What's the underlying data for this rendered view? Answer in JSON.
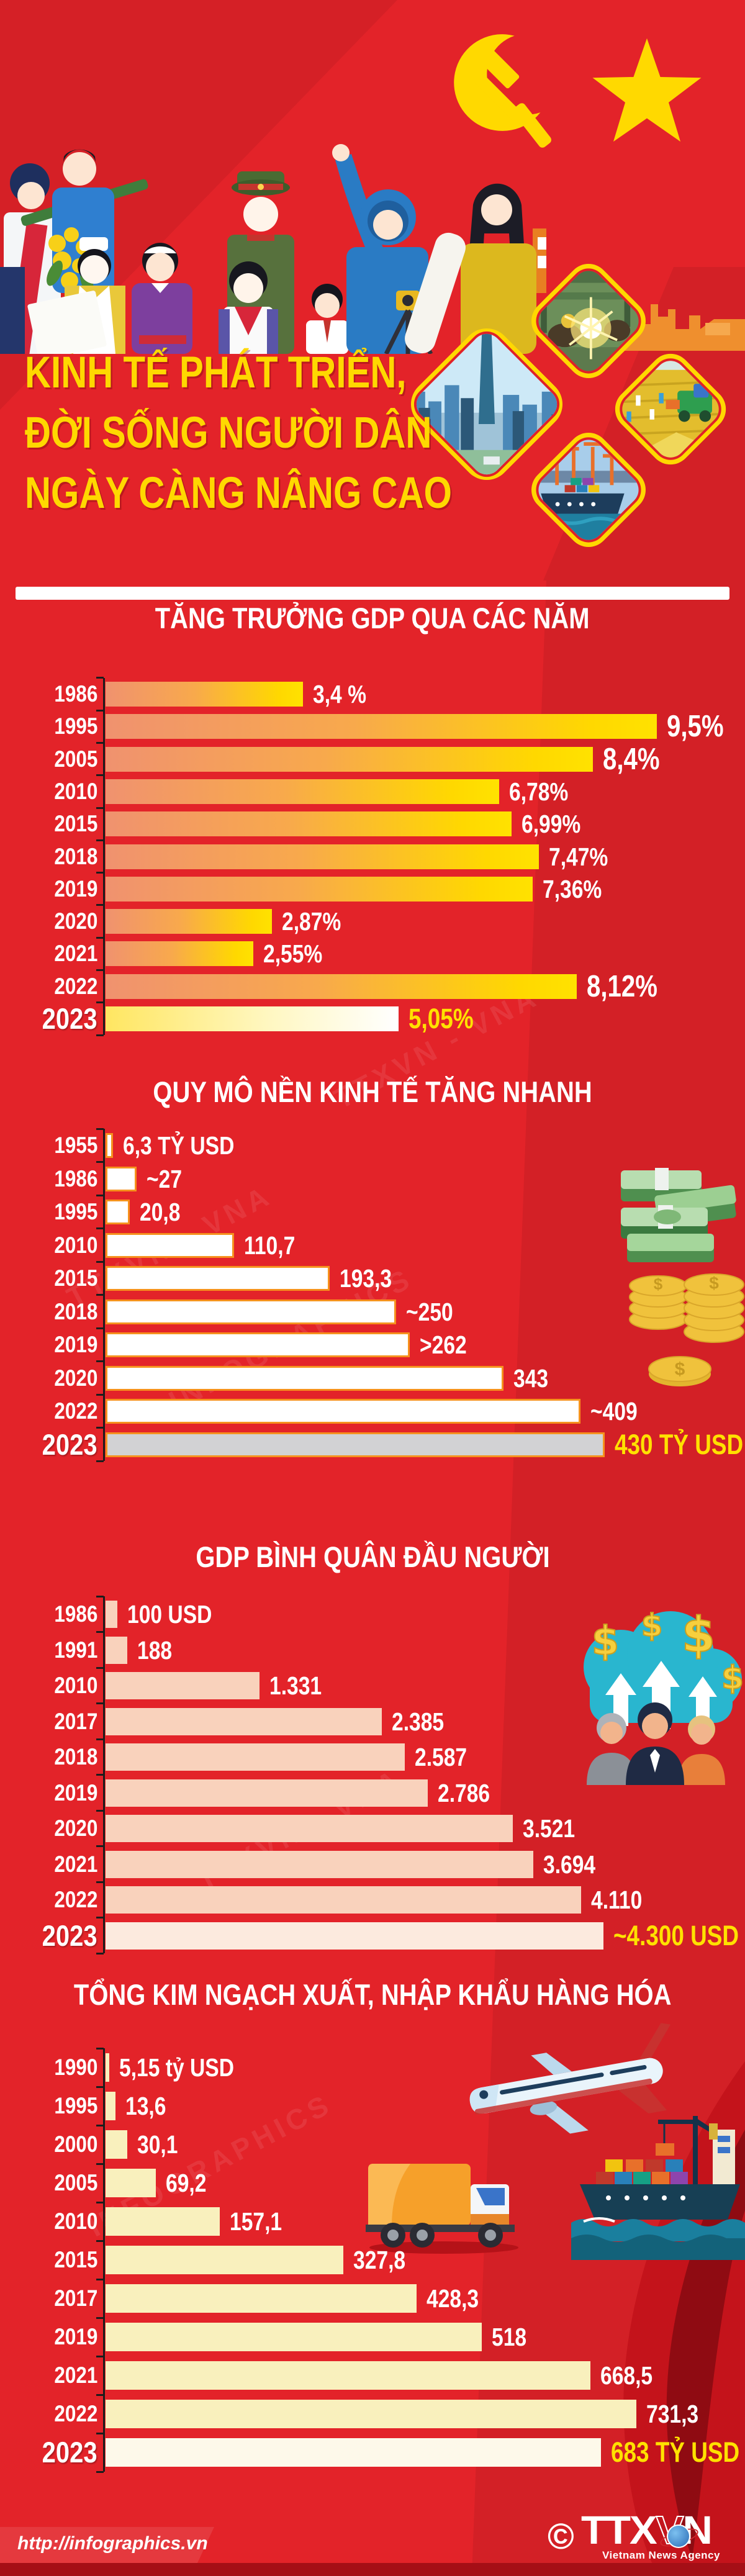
{
  "header": {
    "title_lines": [
      "KINH TẾ PHÁT TRIỂN,",
      "ĐỜI SỐNG NGƯỜI DÂN",
      "NGÀY CÀNG NÂNG CAO"
    ],
    "emblem_icons": [
      "hammer-sickle-icon",
      "star-icon"
    ],
    "photo_icons": [
      "industry-welding-photo",
      "city-skyline-photo",
      "rice-harvest-photo",
      "container-port-photo"
    ]
  },
  "colors": {
    "background_red": "#e32329",
    "title_yellow": "#ffd800",
    "highlight_value_yellow": "#ffe100",
    "bar1_gradient": [
      "#f0926f",
      "#f8a94c",
      "#ffd800"
    ],
    "bar2_fill": "#ffffff",
    "bar2_border_orange": "#f6921e",
    "bar2_highlight_gray": "#d2d2d4",
    "bar3_fill": "#f9d2bc",
    "bar4_fill": "#f9f0bd",
    "footer_bar_red": "#a50f16",
    "white": "#ffffff"
  },
  "chart_data": [
    {
      "type": "bar",
      "orientation": "horizontal",
      "title": "TĂNG TRƯỞNG GDP QUA CÁC NĂM",
      "unit": "%",
      "categories": [
        "1986",
        "1995",
        "2005",
        "2010",
        "2015",
        "2018",
        "2019",
        "2020",
        "2021",
        "2022",
        "2023"
      ],
      "values": [
        3.4,
        9.5,
        8.4,
        6.78,
        6.99,
        7.47,
        7.36,
        2.87,
        2.55,
        8.12,
        5.05
      ],
      "value_labels": [
        "3,4 %",
        "9,5%",
        "8,4%",
        "6,78%",
        "6,99%",
        "7,47%",
        "7,36%",
        "2,87%",
        "2,55%",
        "8,12%",
        "5,05%"
      ],
      "emphasized_rows": [
        1,
        2,
        9
      ],
      "highlight_last": true,
      "legend": "none",
      "grid": false
    },
    {
      "type": "bar",
      "orientation": "horizontal",
      "title": "QUY MÔ NỀN KINH TẾ TĂNG NHANH",
      "unit": "tỷ USD",
      "categories": [
        "1955",
        "1986",
        "1995",
        "2010",
        "2015",
        "2018",
        "2019",
        "2020",
        "2022",
        "2023"
      ],
      "values": [
        6.3,
        27,
        20.8,
        110.7,
        193.3,
        250,
        262,
        343,
        409,
        430
      ],
      "value_labels": [
        "6,3 TỶ USD",
        "~27",
        "20,8",
        "110,7",
        "193,3",
        "~250",
        ">262",
        "343",
        "~409",
        "430 TỶ USD"
      ],
      "emphasized_rows": [],
      "highlight_last": true,
      "legend": "none",
      "grid": false
    },
    {
      "type": "bar",
      "orientation": "horizontal",
      "title": "GDP BÌNH QUÂN ĐẦU NGƯỜI",
      "unit": "USD",
      "categories": [
        "1986",
        "1991",
        "2010",
        "2017",
        "2018",
        "2019",
        "2020",
        "2021",
        "2022",
        "2023"
      ],
      "values": [
        100,
        188,
        1331,
        2385,
        2587,
        2786,
        3521,
        3694,
        4110,
        4300
      ],
      "value_labels": [
        "100 USD",
        "188",
        "1.331",
        "2.385",
        "2.587",
        "2.786",
        "3.521",
        "3.694",
        "4.110",
        "~4.300 USD"
      ],
      "emphasized_rows": [],
      "highlight_last": true,
      "legend": "none",
      "grid": false
    },
    {
      "type": "bar",
      "orientation": "horizontal",
      "title": "TỔNG KIM NGẠCH XUẤT, NHẬP KHẨU HÀNG HÓA",
      "unit": "tỷ USD",
      "categories": [
        "1990",
        "1995",
        "2000",
        "2005",
        "2010",
        "2015",
        "2017",
        "2019",
        "2021",
        "2022",
        "2023"
      ],
      "values": [
        5.15,
        13.6,
        30.1,
        69.2,
        157.1,
        327.8,
        428.3,
        518,
        668.5,
        731.3,
        683
      ],
      "value_labels": [
        "5,15 tỷ USD",
        "13,6",
        "30,1",
        "69,2",
        "157,1",
        "327,8",
        "428,3",
        "518",
        "668,5",
        "731,3",
        "683 TỶ USD"
      ],
      "emphasized_rows": [],
      "highlight_last": true,
      "legend": "none",
      "grid": false
    }
  ],
  "watermark": {
    "text1": "TTXVN - VNA",
    "text2": "INFOGRAPHICS"
  },
  "footer": {
    "url": "http://infographics.vn",
    "copyright": "©",
    "logo": {
      "ttx": "TTX",
      "v": "V",
      "n": "N",
      "sub": "Vietnam News Agency"
    }
  }
}
